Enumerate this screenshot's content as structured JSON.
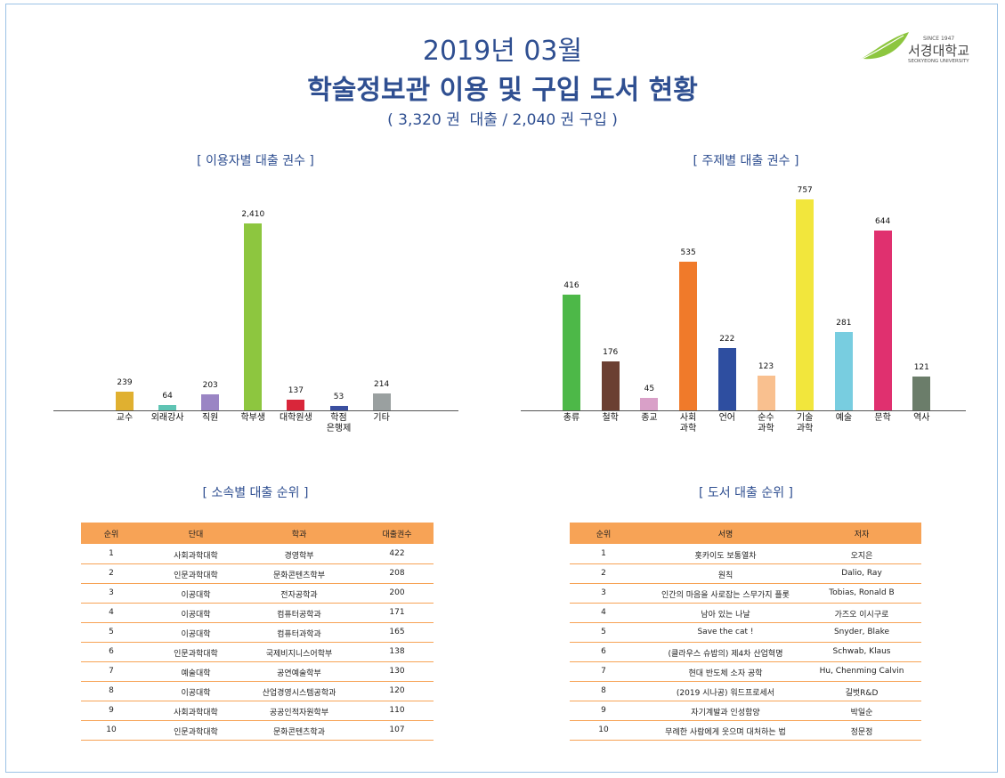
{
  "header": {
    "title_line1": "2019년 03월",
    "title_line2": "학술정보관 이용 및 구입 도서 현황",
    "subtitle": "( 3,320 권  대출 / 2,040 권 구입 )"
  },
  "logo": {
    "name": "서경대학교",
    "since": "SINCE 1947",
    "english": "SEOKYEONG UNIVERSITY"
  },
  "chart_data": [
    {
      "type": "bar",
      "title": "[ 이용자별 대출 권수 ]",
      "categories": [
        "교수",
        "외래강사",
        "직원",
        "학부생",
        "대학원생",
        "학점\n은행제",
        "기타"
      ],
      "values": [
        239,
        64,
        203,
        2410,
        137,
        53,
        214
      ],
      "value_labels": [
        "239",
        "64",
        "203",
        "2,410",
        "137",
        "53",
        "214"
      ],
      "colors": [
        "#e0b030",
        "#5fc4b4",
        "#9a85c4",
        "#8dc63f",
        "#d9263a",
        "#3a4fa0",
        "#9aa0a0"
      ]
    },
    {
      "type": "bar",
      "title": "[ 주제별 대출 권수 ]",
      "categories": [
        "총류",
        "철학",
        "종교",
        "사회\n과학",
        "언어",
        "순수\n과학",
        "기술\n과학",
        "예술",
        "문학",
        "역사"
      ],
      "values": [
        416,
        176,
        45,
        535,
        222,
        123,
        757,
        281,
        644,
        121
      ],
      "colors": [
        "#4db848",
        "#6b3f32",
        "#d9a0c8",
        "#f07a2a",
        "#2e4ea0",
        "#f9c08f",
        "#f2e63c",
        "#78cde0",
        "#e0306f",
        "#6b7d6a"
      ]
    }
  ],
  "tables": [
    {
      "title": "[ 소속별 대출 순위 ]",
      "columns": [
        "순위",
        "단대",
        "학과",
        "대출권수"
      ],
      "rows": [
        [
          1,
          "사회과학대학",
          "경영학부",
          422
        ],
        [
          2,
          "인문과학대학",
          "문화콘텐츠학부",
          208
        ],
        [
          3,
          "이공대학",
          "전자공학과",
          200
        ],
        [
          4,
          "이공대학",
          "컴퓨터공학과",
          171
        ],
        [
          5,
          "이공대학",
          "컴퓨터과학과",
          165
        ],
        [
          6,
          "인문과학대학",
          "국제비지니스어학부",
          138
        ],
        [
          7,
          "예술대학",
          "공연예술학부",
          130
        ],
        [
          8,
          "이공대학",
          "산업경영시스템공학과",
          120
        ],
        [
          9,
          "사회과학대학",
          "공공인적자원학부",
          110
        ],
        [
          10,
          "인문과학대학",
          "문화콘텐츠학과",
          107
        ]
      ]
    },
    {
      "title": "[ 도서 대출 순위 ]",
      "columns": [
        "순위",
        "서명",
        "저자"
      ],
      "rows": [
        [
          1,
          "홋카이도 보통열차",
          "오지은"
        ],
        [
          2,
          "원칙",
          "Dalio, Ray"
        ],
        [
          3,
          "인간의 마음을 사로잡는 스무가지 플롯",
          "Tobias, Ronald B"
        ],
        [
          4,
          "남아 있는 나날",
          "가즈오 이시구로"
        ],
        [
          5,
          "Save the cat !",
          "Snyder, Blake"
        ],
        [
          6,
          "(클라우스 슈밥의) 제4차 산업혁명",
          "Schwab, Klaus"
        ],
        [
          7,
          "현대 반도체 소자 공학",
          "Hu, Chenming Calvin"
        ],
        [
          8,
          "(2019 시나공) 워드프로세서",
          "길벗R&D"
        ],
        [
          9,
          "자기계발과 인성함양",
          "박일순"
        ],
        [
          10,
          "무례한 사람에게 웃으며 대처하는 법",
          "정문정"
        ]
      ]
    }
  ]
}
